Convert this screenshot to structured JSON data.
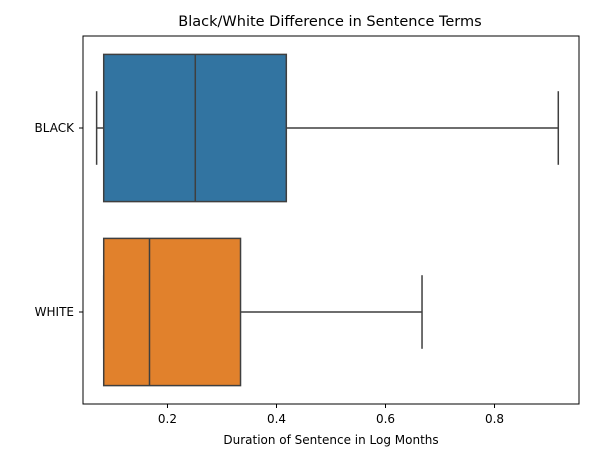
{
  "chart_data": {
    "type": "box",
    "orientation": "horizontal",
    "title": "Black/White Difference in Sentence Terms",
    "xlabel": "Duration of Sentence in Log Months",
    "ylabel": "",
    "xlim": [
      0.045,
      0.955
    ],
    "xticks": [
      0.2,
      0.4,
      0.6,
      0.8
    ],
    "xtick_labels": [
      "0.2",
      "0.4",
      "0.6",
      "0.8"
    ],
    "grid": false,
    "categories": [
      "BLACK",
      "WHITE"
    ],
    "boxes": [
      {
        "category": "BLACK",
        "whisker_low": 0.07,
        "q1": 0.083,
        "median": 0.251,
        "q3": 0.418,
        "whisker_high": 0.917,
        "color": "#3274a1"
      },
      {
        "category": "WHITE",
        "whisker_low": 0.083,
        "q1": 0.083,
        "median": 0.167,
        "q3": 0.334,
        "whisker_high": 0.667,
        "color": "#e1812c"
      }
    ],
    "line_color": "#3f3f3f"
  }
}
